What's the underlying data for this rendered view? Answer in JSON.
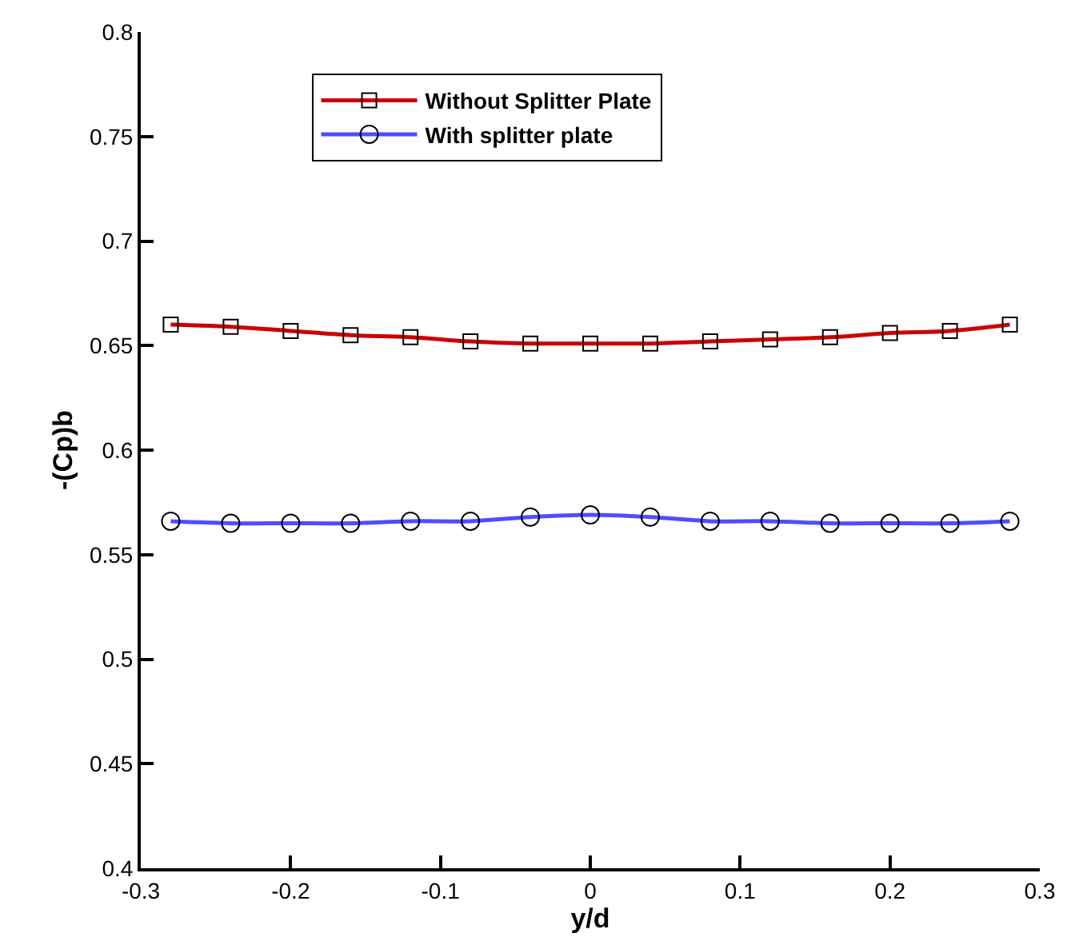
{
  "chart_data": {
    "type": "line",
    "xlabel": "y/d",
    "ylabel": "-(Cp)b",
    "x": [
      -0.28,
      -0.24,
      -0.2,
      -0.16,
      -0.12,
      -0.08,
      -0.04,
      0,
      0.04,
      0.08,
      0.12,
      0.16,
      0.2,
      0.24,
      0.28
    ],
    "series": [
      {
        "name": "Without Splitter Plate",
        "color": "#cc0000",
        "marker": "square",
        "values": [
          0.66,
          0.659,
          0.657,
          0.655,
          0.654,
          0.652,
          0.651,
          0.651,
          0.651,
          0.652,
          0.653,
          0.654,
          0.656,
          0.657,
          0.66
        ]
      },
      {
        "name": "With splitter plate",
        "color": "#4d4dff",
        "marker": "circle",
        "values": [
          0.566,
          0.565,
          0.565,
          0.565,
          0.566,
          0.566,
          0.568,
          0.569,
          0.568,
          0.566,
          0.566,
          0.565,
          0.565,
          0.565,
          0.566
        ]
      }
    ],
    "xlim": [
      -0.3,
      0.3
    ],
    "xticks": [
      -0.3,
      -0.2,
      -0.1,
      0,
      0.1,
      0.2,
      0.3
    ],
    "ylim": [
      0.4,
      0.8
    ],
    "yticks": [
      0.4,
      0.45,
      0.5,
      0.55,
      0.6,
      0.65,
      0.7,
      0.75,
      0.8
    ],
    "legend": "top",
    "line_style": "solid"
  }
}
